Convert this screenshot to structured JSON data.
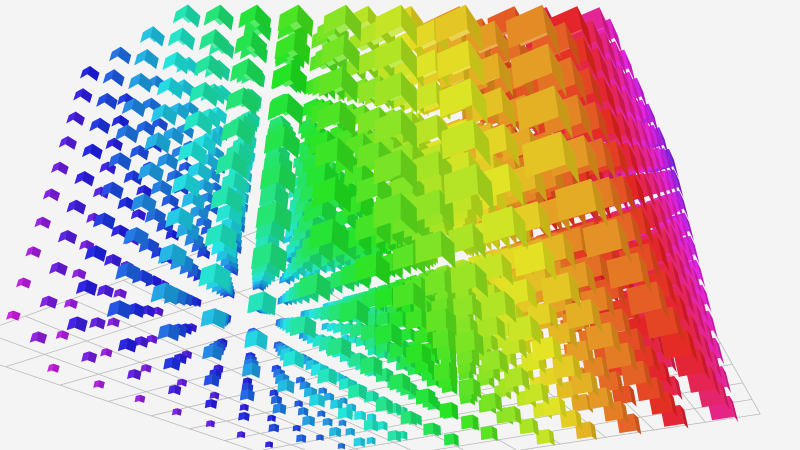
{
  "scene": {
    "type": "3d-cube-scatter",
    "background": "#f4f4f4",
    "grid_color": "#bbbbbb",
    "color_scheme": "rainbow-hue",
    "grid_visible": true
  }
}
